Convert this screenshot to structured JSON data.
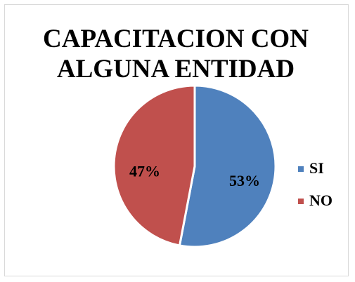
{
  "chart_data": {
    "type": "pie",
    "title": "CAPACITACION CON ALGUNA ENTIDAD",
    "categories": [
      "SI",
      "NO"
    ],
    "values": [
      53,
      47
    ],
    "value_labels": [
      "53%",
      "47%"
    ],
    "colors": [
      "#4f81bd",
      "#c0504d"
    ],
    "legend": "right"
  }
}
